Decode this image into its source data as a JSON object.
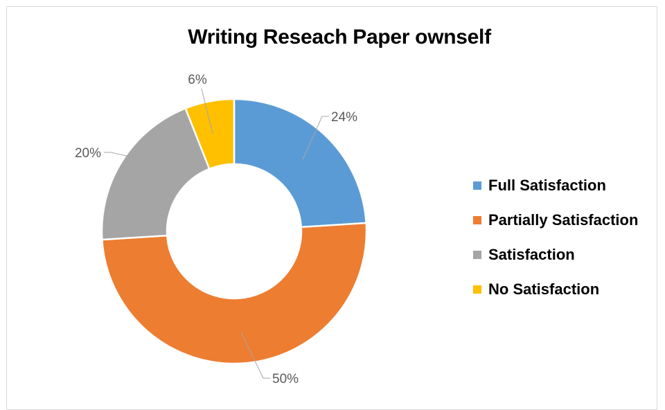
{
  "chart_data": {
    "type": "pie",
    "variant": "doughnut",
    "title": "Writing Reseach Paper ownself",
    "categories": [
      "Full Satisfaction",
      "Partially Satisfaction",
      "Satisfaction",
      "No Satisfaction"
    ],
    "values": [
      24,
      50,
      20,
      6
    ],
    "labels": [
      "24%",
      "50%",
      "20%",
      "6%"
    ],
    "colors": [
      "#5b9bd5",
      "#ed7d31",
      "#a5a5a5",
      "#ffc000"
    ],
    "legend_position": "right"
  }
}
